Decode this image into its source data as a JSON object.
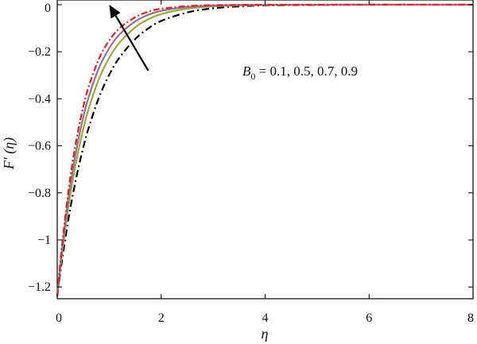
{
  "chart_data": {
    "type": "line",
    "xlabel": "η",
    "ylabel": "F′ (η)",
    "xlim": [
      0,
      8
    ],
    "ylim": [
      -1.25,
      0.02
    ],
    "xticks": [
      0,
      2,
      4,
      6,
      8
    ],
    "xtick_labels": [
      "0",
      "2",
      "4",
      "6",
      "8"
    ],
    "yticks": [
      0,
      -0.2,
      -0.4,
      -0.6,
      -0.8,
      -1,
      -1.2
    ],
    "ytick_labels": [
      "0",
      "−0.2",
      "−0.4",
      "−0.6",
      "−0.8",
      "−1",
      "−1.2"
    ],
    "grid": false,
    "legend": "none",
    "annotation": {
      "prefix": "B",
      "subscript": "0",
      "values_text": " = 0.1, 0.5, 0.7, 0.9",
      "arrow_from": [
        1.75,
        -0.28
      ],
      "arrow_to": [
        1.0,
        0.0
      ]
    },
    "x": [
      0,
      0.05,
      0.1,
      0.2,
      0.3,
      0.4,
      0.5,
      0.6,
      0.8,
      1.0,
      1.2,
      1.5,
      1.75,
      2.0,
      2.5,
      3.0,
      3.5,
      4.0,
      4.5,
      5.0,
      6.0,
      7.0,
      8.0
    ],
    "series": [
      {
        "color": "#000000",
        "dash": "9,4,2,4",
        "values": [
          -1.24,
          -1.154,
          -1.075,
          -0.932,
          -0.808,
          -0.701,
          -0.608,
          -0.527,
          -0.396,
          -0.298,
          -0.224,
          -0.146,
          -0.101,
          -0.069,
          -0.033,
          -0.015,
          -0.007,
          -0.003,
          -0.002,
          -0.001,
          0.0,
          0.0,
          0.0
        ]
      },
      {
        "color": "#9aaa3c",
        "dash": "none",
        "values": [
          -1.24,
          -1.138,
          -1.045,
          -0.881,
          -0.743,
          -0.627,
          -0.529,
          -0.446,
          -0.317,
          -0.226,
          -0.161,
          -0.096,
          -0.062,
          -0.04,
          -0.017,
          -0.007,
          -0.003,
          -0.001,
          -0.001,
          0.0,
          0.0,
          0.0,
          0.0
        ]
      },
      {
        "color": "#9a6f8f",
        "dash": "none",
        "values": [
          -1.24,
          -1.128,
          -1.026,
          -0.848,
          -0.701,
          -0.58,
          -0.479,
          -0.396,
          -0.27,
          -0.185,
          -0.126,
          -0.071,
          -0.043,
          -0.026,
          -0.01,
          -0.004,
          -0.001,
          -0.001,
          0.0,
          0.0,
          0.0,
          0.0,
          0.0
        ]
      },
      {
        "color": "#e02020",
        "dash": "8,3,2,3",
        "values": [
          -1.24,
          -1.118,
          -1.008,
          -0.818,
          -0.663,
          -0.537,
          -0.435,
          -0.352,
          -0.231,
          -0.152,
          -0.1,
          -0.053,
          -0.03,
          -0.017,
          -0.006,
          -0.002,
          -0.001,
          0.0,
          0.0,
          0.0,
          0.0,
          0.0,
          0.0
        ]
      }
    ]
  }
}
